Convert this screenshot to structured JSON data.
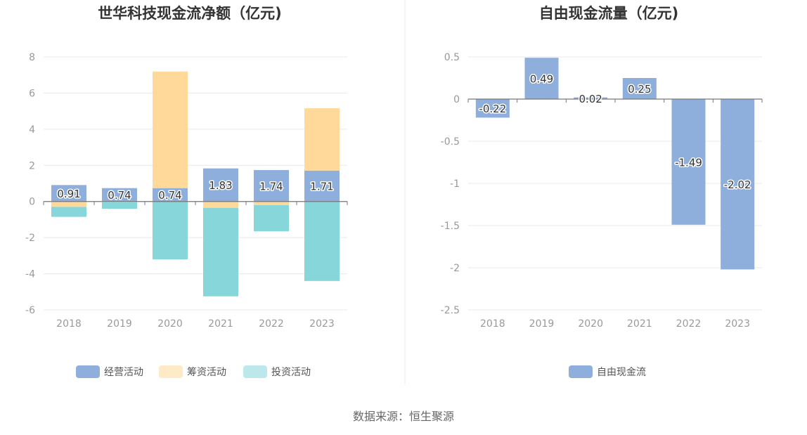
{
  "source": "数据来源：恒生聚源",
  "chart_data": [
    {
      "type": "bar",
      "stacked": true,
      "title": "世华科技现金流净额（亿元)",
      "categories": [
        "2018",
        "2019",
        "2020",
        "2021",
        "2022",
        "2023"
      ],
      "ylim": [
        -6,
        8
      ],
      "yticks": [
        -6,
        -4,
        -2,
        0,
        2,
        4,
        6,
        8
      ],
      "grid": true,
      "legend_position": "bottom",
      "series": [
        {
          "name": "经营活动",
          "color": "#8eaedc",
          "values": [
            0.91,
            0.74,
            0.74,
            1.83,
            1.74,
            1.71
          ],
          "labels": [
            "0.91",
            "0.74",
            "0.74",
            "1.83",
            "1.74",
            "1.71"
          ]
        },
        {
          "name": "筹资活动",
          "color": "#ffd99a",
          "values": [
            -0.3,
            -0.05,
            6.45,
            -0.35,
            -0.2,
            3.45
          ]
        },
        {
          "name": "投资活动",
          "color": "#87d6da",
          "values": [
            -0.55,
            -0.35,
            -3.2,
            -4.9,
            -1.45,
            -4.4
          ]
        }
      ]
    },
    {
      "type": "bar",
      "title": "自由现金流量（亿元)",
      "categories": [
        "2018",
        "2019",
        "2020",
        "2021",
        "2022",
        "2023"
      ],
      "ylim": [
        -2.5,
        0.5
      ],
      "yticks": [
        -2.5,
        -2,
        -1.5,
        -1,
        -0.5,
        0,
        0.5
      ],
      "grid": true,
      "legend_position": "bottom",
      "series": [
        {
          "name": "自由现金流",
          "color": "#8eaedc",
          "values": [
            -0.22,
            0.49,
            0.02,
            0.25,
            -1.49,
            -2.02
          ],
          "labels": [
            "-0.22",
            "0.49",
            "0.02",
            "0.25",
            "-1.49",
            "-2.02"
          ]
        }
      ]
    }
  ]
}
